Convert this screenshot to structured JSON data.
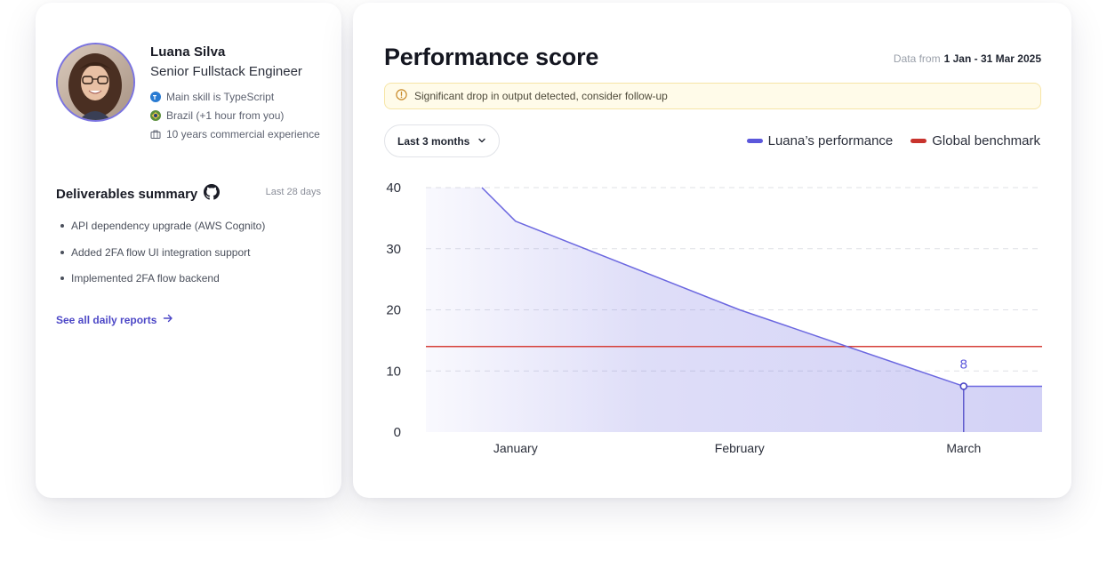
{
  "profile": {
    "name": "Luana Silva",
    "role": "Senior Fullstack Engineer",
    "skill": "Main skill is TypeScript",
    "location": "Brazil (+1 hour from you)",
    "experience": "10 years commercial experience",
    "skill_icon": "typescript-icon",
    "location_icon": "brazil-flag-icon",
    "experience_icon": "briefcase-icon"
  },
  "deliverables": {
    "title": "Deliverables summary",
    "range": "Last 28 days",
    "items": [
      "API dependency upgrade (AWS Cognito)",
      "Added 2FA flow UI integration support",
      "Implemented 2FA flow backend"
    ],
    "link_label": "See all daily reports",
    "icon": "github-icon"
  },
  "performance": {
    "title": "Performance score",
    "data_from_label": "Data from",
    "data_from_range": "1 Jan - 31 Mar 2025",
    "alert": "Significant drop in output detected, consider follow-up",
    "period_label": "Last 3 months",
    "legend": {
      "primary": "Luana’s performance",
      "benchmark": "Global benchmark"
    }
  },
  "colors": {
    "primary": "#6c68e0",
    "benchmark": "#d6403a",
    "accent_link": "#4d48c7"
  },
  "chart_data": {
    "type": "area",
    "categories": [
      "January",
      "February",
      "March"
    ],
    "series": [
      {
        "name": "Luana’s performance",
        "x": [
          0.85,
          1.0,
          2.0,
          3.0,
          3.35
        ],
        "y": [
          40,
          34.5,
          20,
          7.5,
          7.5
        ]
      },
      {
        "name": "Global benchmark",
        "x": [
          0.6,
          3.35
        ],
        "y": [
          14,
          14
        ]
      }
    ],
    "highlight": {
      "category": "March",
      "value": 8,
      "label": "8"
    },
    "yticks": [
      0,
      10,
      20,
      30,
      40
    ],
    "ylim": [
      0,
      40
    ],
    "xlim": [
      0.6,
      3.35
    ],
    "grid": true,
    "legend": "top-right"
  }
}
